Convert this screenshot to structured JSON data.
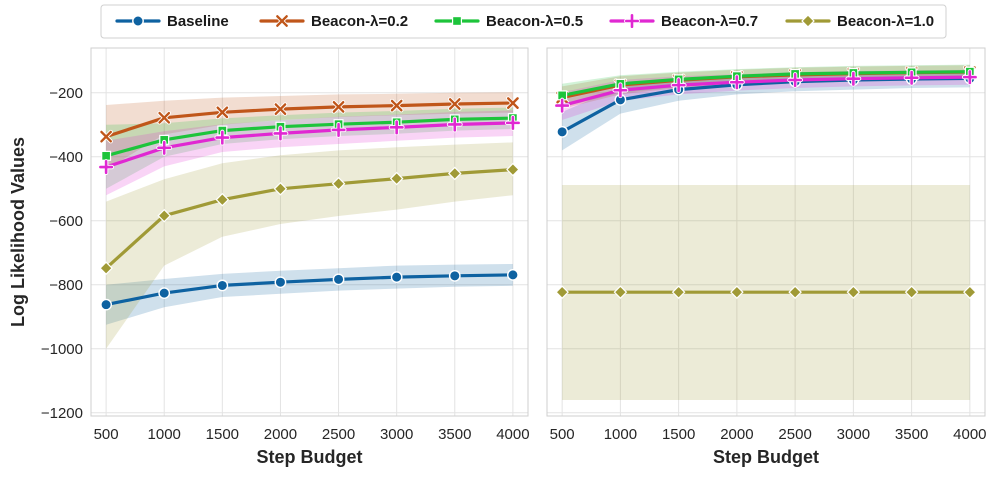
{
  "chart_data": {
    "type": "line",
    "legend": {
      "placement": "top-center",
      "entries": [
        "Baseline",
        "Beacon-λ=0.2",
        "Beacon-λ=0.5",
        "Beacon-λ=0.7",
        "Beacon-λ=1.0"
      ]
    },
    "ylabel": "Log Likelihood Values",
    "ylim": [
      -1210,
      -60
    ],
    "yticks": [
      -200,
      -400,
      -600,
      -800,
      -1000,
      -1200
    ],
    "ytick_labels": [
      "−200",
      "−400",
      "−600",
      "−800",
      "−1000",
      "−1200"
    ],
    "xlim": [
      370,
      4130
    ],
    "xticks": [
      500,
      1000,
      1500,
      2000,
      2500,
      3000,
      3500,
      4000
    ],
    "xtick_labels": [
      "500",
      "1000",
      "1500",
      "2000",
      "2500",
      "3000",
      "3500",
      "4000"
    ],
    "grid": true,
    "series_styles": [
      {
        "name": "Baseline",
        "color": "#0e62a1",
        "marker": "circle"
      },
      {
        "name": "Beacon-λ=0.2",
        "color": "#c0561a",
        "marker": "x"
      },
      {
        "name": "Beacon-λ=0.5",
        "color": "#1dc43b",
        "marker": "square"
      },
      {
        "name": "Beacon-λ=0.7",
        "color": "#e028d2",
        "marker": "plus"
      },
      {
        "name": "Beacon-λ=1.0",
        "color": "#a09a36",
        "marker": "diamond"
      }
    ],
    "panels": [
      {
        "xlabel": "Step Budget",
        "x": [
          500,
          1000,
          1500,
          2000,
          2500,
          3000,
          3500,
          4000
        ],
        "series": [
          {
            "name": "Baseline",
            "values": [
              -862,
              -826,
              -802,
              -792,
              -783,
              -776,
              -772,
              -769
            ],
            "lower": [
              -925,
              -870,
              -838,
              -828,
              -818,
              -812,
              -806,
              -803
            ],
            "upper": [
              -800,
              -782,
              -766,
              -756,
              -748,
              -740,
              -737,
              -735
            ]
          },
          {
            "name": "Beacon-λ=0.2",
            "values": [
              -337,
              -278,
              -261,
              -251,
              -244,
              -240,
              -235,
              -232
            ],
            "lower": [
              -440,
              -330,
              -300,
              -285,
              -276,
              -270,
              -265,
              -262
            ],
            "upper": [
              -238,
              -225,
              -215,
              -210,
              -205,
              -203,
              -200,
              -198
            ]
          },
          {
            "name": "Beacon-λ=0.5",
            "values": [
              -397,
              -347,
              -318,
              -306,
              -298,
              -292,
              -283,
              -279
            ],
            "lower": [
              -500,
              -400,
              -360,
              -345,
              -335,
              -328,
              -318,
              -313
            ],
            "upper": [
              -300,
              -295,
              -280,
              -270,
              -262,
              -257,
              -250,
              -246
            ]
          },
          {
            "name": "Beacon-λ=0.7",
            "values": [
              -432,
              -372,
              -340,
              -327,
              -316,
              -308,
              -299,
              -294
            ],
            "lower": [
              -520,
              -430,
              -385,
              -370,
              -360,
              -350,
              -340,
              -335
            ],
            "upper": [
              -350,
              -320,
              -298,
              -286,
              -275,
              -268,
              -260,
              -255
            ]
          },
          {
            "name": "Beacon-λ=1.0",
            "values": [
              -748,
              -584,
              -534,
              -500,
              -484,
              -468,
              -452,
              -440
            ],
            "lower": [
              -1000,
              -740,
              -650,
              -610,
              -585,
              -565,
              -540,
              -520
            ],
            "upper": [
              -540,
              -470,
              -420,
              -395,
              -380,
              -370,
              -362,
              -355
            ]
          }
        ]
      },
      {
        "xlabel": "Step Budget",
        "x": [
          500,
          1000,
          1500,
          2000,
          2500,
          3000,
          3500,
          4000
        ],
        "series": [
          {
            "name": "Baseline",
            "values": [
              -322,
              -222,
              -190,
              -175,
              -165,
              -160,
              -157,
              -155
            ],
            "lower": [
              -380,
              -265,
              -225,
              -205,
              -195,
              -190,
              -185,
              -183
            ],
            "upper": [
              -260,
              -182,
              -158,
              -147,
              -140,
              -136,
              -133,
              -131
            ]
          },
          {
            "name": "Beacon-λ=0.2",
            "values": [
              -215,
              -176,
              -161,
              -150,
              -144,
              -140,
              -137,
              -135
            ],
            "lower": [
              -250,
              -205,
              -185,
              -172,
              -166,
              -162,
              -158,
              -156
            ],
            "upper": [
              -180,
              -148,
              -137,
              -128,
              -122,
              -118,
              -116,
              -114
            ]
          },
          {
            "name": "Beacon-λ=0.5",
            "values": [
              -208,
              -172,
              -158,
              -148,
              -141,
              -138,
              -136,
              -134
            ],
            "lower": [
              -245,
              -200,
              -182,
              -170,
              -163,
              -158,
              -155,
              -153
            ],
            "upper": [
              -172,
              -145,
              -134,
              -126,
              -120,
              -116,
              -114,
              -112
            ]
          },
          {
            "name": "Beacon-λ=0.7",
            "values": [
              -240,
              -192,
              -176,
              -167,
              -160,
              -156,
              -153,
              -151
            ],
            "lower": [
              -285,
              -225,
              -205,
              -193,
              -185,
              -180,
              -177,
              -175
            ],
            "upper": [
              -198,
              -160,
              -148,
              -142,
              -136,
              -132,
              -130,
              -128
            ]
          },
          {
            "name": "Beacon-λ=1.0",
            "values": [
              -823,
              -823,
              -823,
              -823,
              -823,
              -823,
              -823,
              -823
            ],
            "lower": [
              -1160,
              -1160,
              -1160,
              -1160,
              -1160,
              -1160,
              -1160,
              -1160
            ],
            "upper": [
              -488,
              -488,
              -488,
              -488,
              -488,
              -488,
              -488,
              -488
            ]
          }
        ]
      }
    ]
  }
}
